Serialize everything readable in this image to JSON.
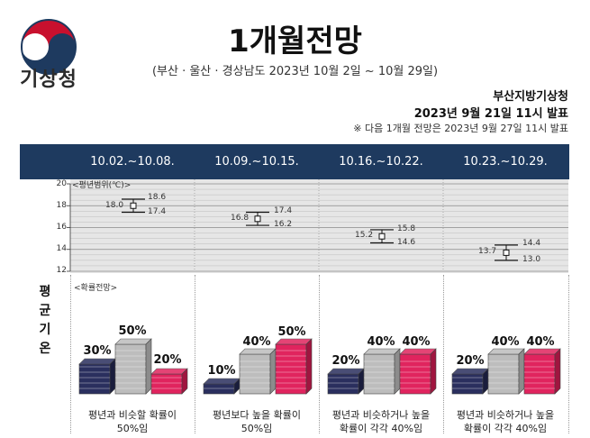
{
  "agency": {
    "logo_text": "기상청"
  },
  "title": "1개월전망",
  "subtitle": "(부산 · 울산 · 경상남도 2023년 10월 2일 ~ 10월 29일)",
  "issuer": "부산지방기상청",
  "issued": "2023년 9월 21일 11시 발표",
  "next_release": "※ 다음 1개월 전망은 2023년 9월 27일 11시 발표",
  "range_tag": "<평년범위(℃)>",
  "prob_tag": "<확률전망>",
  "section_label": [
    "평",
    "균",
    "기",
    "온"
  ],
  "colors": {
    "header": "#1e3a5f",
    "below": "#2a2f5e",
    "normal": "#bdbdbd",
    "above": "#e0245e"
  },
  "chart_data": {
    "type": "error-range",
    "ylim": [
      12,
      20
    ],
    "yticks": [
      12,
      14,
      16,
      18,
      20
    ],
    "weeks": [
      {
        "label": "10.02.~10.08.",
        "mean": 18.0,
        "high": 18.6,
        "low": 17.4,
        "mean_label": "18.0",
        "high_label": "18.6",
        "low_label": "17.4",
        "below": 30,
        "normal": 50,
        "above": 20,
        "below_label": "30%",
        "normal_label": "50%",
        "above_label": "20%",
        "desc": [
          "평년과 비슷할 확률이",
          "50%임"
        ]
      },
      {
        "label": "10.09.~10.15.",
        "mean": 16.8,
        "high": 17.4,
        "low": 16.2,
        "mean_label": "16.8",
        "high_label": "17.4",
        "low_label": "16.2",
        "below": 10,
        "normal": 40,
        "above": 50,
        "below_label": "10%",
        "normal_label": "40%",
        "above_label": "50%",
        "desc": [
          "평년보다 높을 확률이",
          "50%임"
        ]
      },
      {
        "label": "10.16.~10.22.",
        "mean": 15.2,
        "high": 15.8,
        "low": 14.6,
        "mean_label": "15.2",
        "high_label": "15.8",
        "low_label": "14.6",
        "below": 20,
        "normal": 40,
        "above": 40,
        "below_label": "20%",
        "normal_label": "40%",
        "above_label": "40%",
        "desc": [
          "평년과 비슷하거나 높을",
          "확률이 각각 40%임"
        ]
      },
      {
        "label": "10.23.~10.29.",
        "mean": 13.7,
        "high": 14.4,
        "low": 13.0,
        "mean_label": "13.7",
        "high_label": "14.4",
        "low_label": "13.0",
        "below": 20,
        "normal": 40,
        "above": 40,
        "below_label": "20%",
        "normal_label": "40%",
        "above_label": "40%",
        "desc": [
          "평년과 비슷하거나 높을",
          "확률이 각각 40%임"
        ]
      }
    ]
  }
}
